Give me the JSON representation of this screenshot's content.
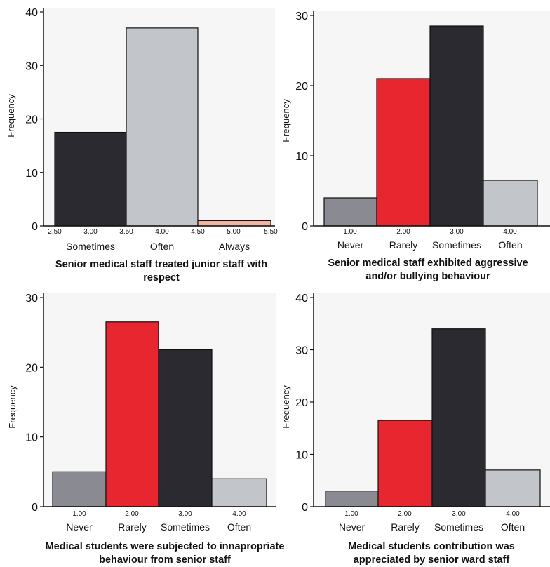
{
  "chart_data": [
    {
      "type": "bar",
      "title": "Senior medical staff treated junior staff with respect",
      "ylabel": "Frequency",
      "ylim": [
        0,
        40
      ],
      "yticks": [
        "0",
        "10",
        "20",
        "30",
        "40"
      ],
      "xticks": [
        "2.50",
        "3.00",
        "3.50",
        "4.00",
        "4.50",
        "5.00",
        "5.50"
      ],
      "categories": [
        "Sometimes",
        "Often",
        "Always"
      ],
      "values": [
        17.5,
        37,
        1
      ],
      "colors": [
        "#2a2a30",
        "#c2c5c9",
        "#f3b3a3"
      ]
    },
    {
      "type": "bar",
      "title": "Senior medical staff exhibited aggressive and/or bullying behaviour",
      "ylabel": "Frequency",
      "ylim": [
        0,
        30
      ],
      "yticks": [
        "0",
        "10",
        "20",
        "30"
      ],
      "xticks": [
        "1.00",
        "2.00",
        "3.00",
        "4.00"
      ],
      "categories": [
        "Never",
        "Rarely",
        "Sometimes",
        "Often"
      ],
      "values": [
        4,
        21,
        28.5,
        6.5
      ],
      "colors": [
        "#8a8a92",
        "#e8262f",
        "#2a2a30",
        "#c2c5c9"
      ]
    },
    {
      "type": "bar",
      "title": "Medical students were subjected to innapropriate behaviour from senior staff",
      "ylabel": "Frequency",
      "ylim": [
        0,
        30
      ],
      "yticks": [
        "0",
        "10",
        "20",
        "30"
      ],
      "xticks": [
        "1.00",
        "2.00",
        "3.00",
        "4.00"
      ],
      "categories": [
        "Never",
        "Rarely",
        "Sometimes",
        "Often"
      ],
      "values": [
        5,
        26.5,
        22.5,
        4
      ],
      "colors": [
        "#8a8a92",
        "#e8262f",
        "#2a2a30",
        "#c2c5c9"
      ]
    },
    {
      "type": "bar",
      "title": "Medical students contribution was appreciated by senior ward staff",
      "ylabel": "Frequency",
      "ylim": [
        0,
        40
      ],
      "yticks": [
        "0",
        "10",
        "20",
        "30",
        "40"
      ],
      "xticks": [
        "1.00",
        "2.00",
        "3.00",
        "4.00"
      ],
      "categories": [
        "Never",
        "Rarely",
        "Sometimes",
        "Often"
      ],
      "values": [
        3,
        16.5,
        34,
        7
      ],
      "colors": [
        "#8a8a92",
        "#e8262f",
        "#2a2a30",
        "#c2c5c9"
      ]
    }
  ]
}
